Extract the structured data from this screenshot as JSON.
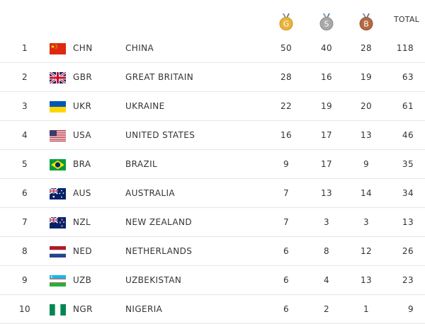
{
  "header": {
    "gold_letter": "G",
    "silver_letter": "S",
    "bronze_letter": "B",
    "total_label": "TOTAL"
  },
  "colors": {
    "gold": "#E7B33A",
    "silver": "#A8A8A8",
    "bronze": "#B36A45",
    "text": "#333333",
    "row_divider": "#E6E6E6"
  },
  "rows": [
    {
      "rank": "1",
      "flag": "china-flag",
      "code": "CHN",
      "name": "CHINA",
      "gold": "50",
      "silver": "40",
      "bronze": "28",
      "total": "118"
    },
    {
      "rank": "2",
      "flag": "great-britain-flag",
      "code": "GBR",
      "name": "GREAT BRITAIN",
      "gold": "28",
      "silver": "16",
      "bronze": "19",
      "total": "63"
    },
    {
      "rank": "3",
      "flag": "ukraine-flag",
      "code": "UKR",
      "name": "UKRAINE",
      "gold": "22",
      "silver": "19",
      "bronze": "20",
      "total": "61"
    },
    {
      "rank": "4",
      "flag": "usa-flag",
      "code": "USA",
      "name": "UNITED STATES",
      "gold": "16",
      "silver": "17",
      "bronze": "13",
      "total": "46"
    },
    {
      "rank": "5",
      "flag": "brazil-flag",
      "code": "BRA",
      "name": "BRAZIL",
      "gold": "9",
      "silver": "17",
      "bronze": "9",
      "total": "35"
    },
    {
      "rank": "6",
      "flag": "australia-flag",
      "code": "AUS",
      "name": "AUSTRALIA",
      "gold": "7",
      "silver": "13",
      "bronze": "14",
      "total": "34"
    },
    {
      "rank": "7",
      "flag": "new-zealand-flag",
      "code": "NZL",
      "name": "NEW ZEALAND",
      "gold": "7",
      "silver": "3",
      "bronze": "3",
      "total": "13"
    },
    {
      "rank": "8",
      "flag": "netherlands-flag",
      "code": "NED",
      "name": "NETHERLANDS",
      "gold": "6",
      "silver": "8",
      "bronze": "12",
      "total": "26"
    },
    {
      "rank": "9",
      "flag": "uzbekistan-flag",
      "code": "UZB",
      "name": "UZBEKISTAN",
      "gold": "6",
      "silver": "4",
      "bronze": "13",
      "total": "23"
    },
    {
      "rank": "10",
      "flag": "nigeria-flag",
      "code": "NGR",
      "name": "NIGERIA",
      "gold": "6",
      "silver": "2",
      "bronze": "1",
      "total": "9"
    }
  ]
}
